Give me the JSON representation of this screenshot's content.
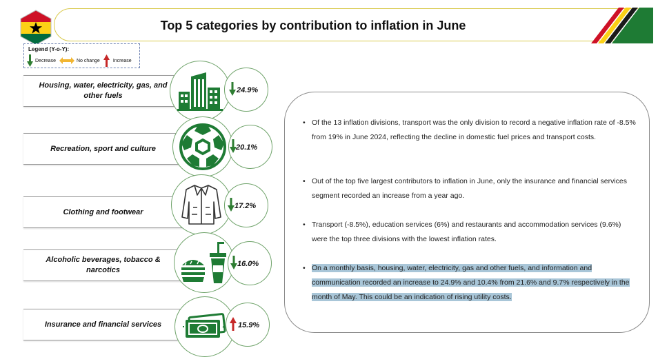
{
  "header": {
    "title": "Top 5 categories by contribution to inflation in June",
    "flag_colors": {
      "red": "#ce1126",
      "gold": "#fcd116",
      "green": "#006b3f",
      "star": "#000000"
    }
  },
  "legend": {
    "title": "Legend (Y-o-Y):",
    "items": [
      {
        "icon": "down-arrow-icon",
        "label": "Decrease",
        "color": "#2e7d32"
      },
      {
        "icon": "double-arrow-icon",
        "label": "No change",
        "color": "#f2b632"
      },
      {
        "icon": "up-arrow-icon",
        "label": "Increase",
        "color": "#c62828"
      }
    ]
  },
  "categories": [
    {
      "label": "Housing, water, electricity, gas, and other fuels",
      "icon": "buildings-icon",
      "trend": "down",
      "value": "24.9%"
    },
    {
      "label": "Recreation, sport and culture",
      "icon": "football-icon",
      "trend": "down",
      "value": "20.1%"
    },
    {
      "label": "Clothing and footwear",
      "icon": "jacket-icon",
      "trend": "down",
      "value": "17.2%"
    },
    {
      "label": "Alcoholic beverages, tobacco & narcotics",
      "icon": "burger-drink-icon",
      "trend": "down",
      "value": "16.0%"
    },
    {
      "label": "Insurance and financial services",
      "icon": "money-icon",
      "trend": "up",
      "value": "15.9%"
    }
  ],
  "notes": [
    {
      "text": "Of the 13 inflation divisions, transport was the only division to record a negative inflation rate of -8.5% from 19% in June 2024, reflecting the decline in domestic fuel prices and transport costs.",
      "highlighted": false
    },
    {
      "text": "Out of the top five largest contributors to inflation in June, only the insurance and financial services segment recorded an increase from a year ago.",
      "highlighted": false
    },
    {
      "text": "Transport (-8.5%), education services (6%) and restaurants and accommodation services (9.6%) were the top three divisions with the lowest inflation rates.",
      "highlighted": false
    },
    {
      "text": "On a monthly basis, housing, water, electricity, gas and other fuels, and information and communication recorded an increase to 24.9% and 10.4% from 21.6% and 9.7% respectively in the month of May. This could be an indication of rising utility costs.",
      "highlighted": true
    }
  ],
  "colors": {
    "icon_green": "#1e7b34",
    "circle_border": "#6fa36a",
    "increase": "#c62828",
    "decrease": "#2e7d32",
    "highlight": "#a9c6d8"
  }
}
